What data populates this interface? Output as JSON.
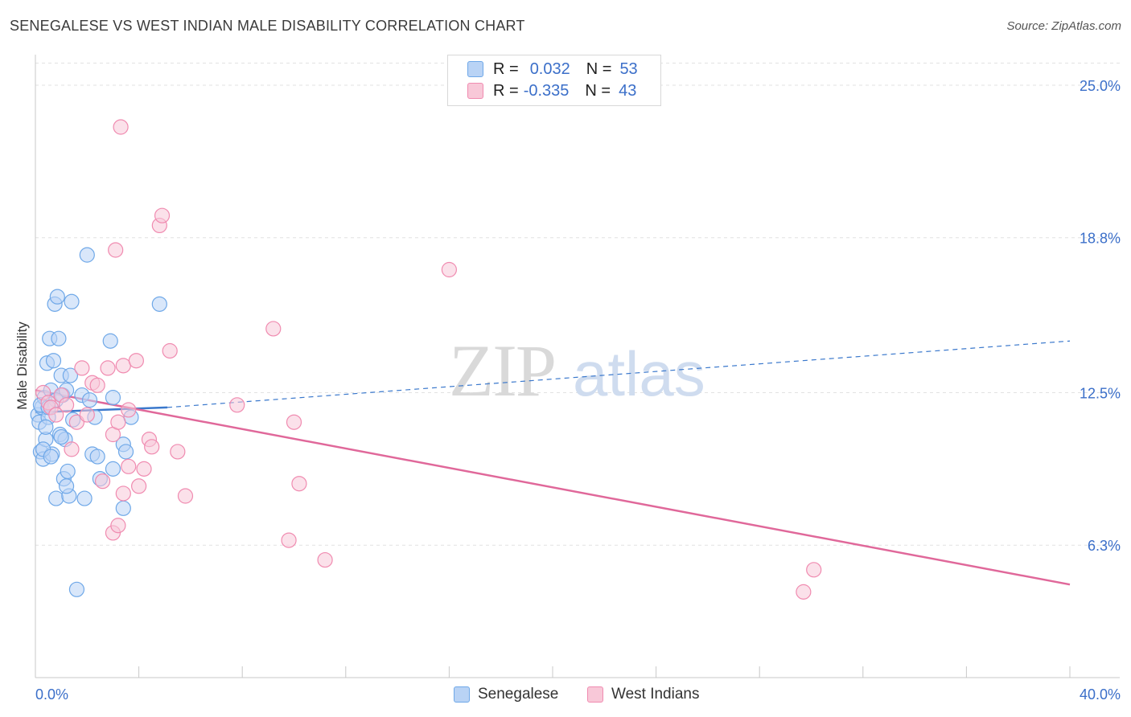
{
  "chart_data": {
    "type": "scatter",
    "title": "SENEGALESE VS WEST INDIAN MALE DISABILITY CORRELATION CHART",
    "source": "Source: ZipAtlas.com",
    "xlabel": "",
    "ylabel": "Male Disability",
    "xlim": [
      0,
      40
    ],
    "ylim": [
      0,
      26
    ],
    "x_tick_labels": [
      "0.0%",
      "40.0%"
    ],
    "y_ticks": [
      6.3,
      12.5,
      18.8,
      25.0
    ],
    "y_tick_labels": [
      "6.3%",
      "12.5%",
      "18.8%",
      "25.0%"
    ],
    "watermark": "ZIPatlas",
    "legend": {
      "rows": [
        {
          "r_label": "R =",
          "r_value": "0.032",
          "n_label": "N =",
          "n_value": "53"
        },
        {
          "r_label": "R =",
          "r_value": "-0.335",
          "n_label": "N =",
          "n_value": "43"
        }
      ]
    },
    "series": [
      {
        "name": "Senegalese",
        "color": "#6fa8e8",
        "fill": "#b9d3f5",
        "trend": {
          "x0": 0,
          "y0": 11.7,
          "x1": 5.1,
          "y1": 11.9,
          "dash_x1": 40,
          "dash_y1": 14.6,
          "color": "#3a78cc"
        },
        "points": [
          [
            0.1,
            11.6
          ],
          [
            0.15,
            11.3
          ],
          [
            0.2,
            10.1
          ],
          [
            0.25,
            11.9
          ],
          [
            0.3,
            9.8
          ],
          [
            0.35,
            12.3
          ],
          [
            0.4,
            10.6
          ],
          [
            0.45,
            13.7
          ],
          [
            0.5,
            11.5
          ],
          [
            0.55,
            14.7
          ],
          [
            0.6,
            12.6
          ],
          [
            0.65,
            10.0
          ],
          [
            0.7,
            13.8
          ],
          [
            0.75,
            16.1
          ],
          [
            0.8,
            8.2
          ],
          [
            0.85,
            16.4
          ],
          [
            0.9,
            14.7
          ],
          [
            0.95,
            10.8
          ],
          [
            1.0,
            13.2
          ],
          [
            1.05,
            12.4
          ],
          [
            1.1,
            9.0
          ],
          [
            1.15,
            10.6
          ],
          [
            1.2,
            12.6
          ],
          [
            1.25,
            9.3
          ],
          [
            1.3,
            8.3
          ],
          [
            1.35,
            13.2
          ],
          [
            1.4,
            16.2
          ],
          [
            1.45,
            11.4
          ],
          [
            1.6,
            4.5
          ],
          [
            1.8,
            12.4
          ],
          [
            1.9,
            8.2
          ],
          [
            2.0,
            18.1
          ],
          [
            2.1,
            12.2
          ],
          [
            2.2,
            10.0
          ],
          [
            2.3,
            11.5
          ],
          [
            2.4,
            9.9
          ],
          [
            2.5,
            9.0
          ],
          [
            2.9,
            14.6
          ],
          [
            3.0,
            12.3
          ],
          [
            3.0,
            9.4
          ],
          [
            3.4,
            10.4
          ],
          [
            3.5,
            10.1
          ],
          [
            3.4,
            7.8
          ],
          [
            3.7,
            11.5
          ],
          [
            4.8,
            16.1
          ],
          [
            0.2,
            12.0
          ],
          [
            0.4,
            11.1
          ],
          [
            0.3,
            10.2
          ],
          [
            0.6,
            9.9
          ],
          [
            1.0,
            10.7
          ],
          [
            0.8,
            12.2
          ],
          [
            1.2,
            8.7
          ],
          [
            0.5,
            11.9
          ]
        ]
      },
      {
        "name": "West Indians",
        "color": "#f08bb0",
        "fill": "#f8c8d8",
        "trend": {
          "x0": 0,
          "y0": 12.6,
          "x1": 40,
          "y1": 4.7,
          "color": "#e0689a"
        },
        "points": [
          [
            0.3,
            12.5
          ],
          [
            0.5,
            12.1
          ],
          [
            0.6,
            11.9
          ],
          [
            0.8,
            11.6
          ],
          [
            1.0,
            12.4
          ],
          [
            1.2,
            12.0
          ],
          [
            1.4,
            10.2
          ],
          [
            1.6,
            11.3
          ],
          [
            1.8,
            13.5
          ],
          [
            2.0,
            11.6
          ],
          [
            2.2,
            12.9
          ],
          [
            2.4,
            12.8
          ],
          [
            2.6,
            8.9
          ],
          [
            2.8,
            13.5
          ],
          [
            3.0,
            10.8
          ],
          [
            3.2,
            11.3
          ],
          [
            3.4,
            13.6
          ],
          [
            3.6,
            11.8
          ],
          [
            3.0,
            6.8
          ],
          [
            3.1,
            18.3
          ],
          [
            3.2,
            7.1
          ],
          [
            3.3,
            23.3
          ],
          [
            3.4,
            8.4
          ],
          [
            3.6,
            9.5
          ],
          [
            3.9,
            13.8
          ],
          [
            4.0,
            8.7
          ],
          [
            4.2,
            9.4
          ],
          [
            4.4,
            10.6
          ],
          [
            4.5,
            10.3
          ],
          [
            4.8,
            19.3
          ],
          [
            4.9,
            19.7
          ],
          [
            5.2,
            14.2
          ],
          [
            5.5,
            10.1
          ],
          [
            5.8,
            8.3
          ],
          [
            7.8,
            12.0
          ],
          [
            9.2,
            15.1
          ],
          [
            9.8,
            6.5
          ],
          [
            10.0,
            11.3
          ],
          [
            10.2,
            8.8
          ],
          [
            11.2,
            5.7
          ],
          [
            16.0,
            17.5
          ],
          [
            29.7,
            4.4
          ],
          [
            30.1,
            5.3
          ]
        ]
      }
    ]
  }
}
